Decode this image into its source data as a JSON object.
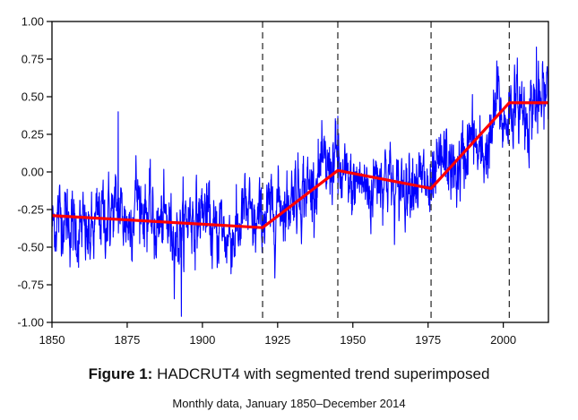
{
  "caption": {
    "figure_label": "Figure 1:",
    "title": "HADCRUT4 with segmented trend superimposed",
    "subtitle": "Monthly data, January 1850–December 2014"
  },
  "colors": {
    "series": "#0000ff",
    "trend": "#ff0000",
    "breakpoints": "#333333",
    "axis": "#000000"
  },
  "chart_data": {
    "type": "line",
    "title": "HADCRUT4 with segmented trend superimposed",
    "subtitle": "Monthly data, January 1850–December 2014",
    "xlabel": "",
    "ylabel": "",
    "xlim": [
      1850,
      2015
    ],
    "ylim": [
      -1.0,
      1.0
    ],
    "x_ticks": [
      1850,
      1875,
      1900,
      1925,
      1950,
      1975,
      2000
    ],
    "y_ticks": [
      -1.0,
      -0.75,
      -0.5,
      -0.25,
      0.0,
      0.25,
      0.5,
      0.75,
      1.0
    ],
    "x_tick_labels": [
      "1850",
      "1875",
      "1900",
      "1925",
      "1950",
      "1975",
      "2000"
    ],
    "y_tick_labels": [
      "-1.00",
      "-0.75",
      "-0.50",
      "-0.25",
      "0.00",
      "0.25",
      "0.50",
      "0.75",
      "1.00"
    ],
    "grid": false,
    "legend": "none",
    "series": [
      {
        "kind": "monthly anomaly",
        "style": "blue line",
        "x": [
          1850,
          1852,
          1854,
          1856,
          1858,
          1860,
          1862,
          1864,
          1866,
          1868,
          1870,
          1872,
          1874,
          1876,
          1878,
          1880,
          1882,
          1884,
          1886,
          1888,
          1890,
          1892,
          1894,
          1896,
          1898,
          1900,
          1902,
          1904,
          1906,
          1908,
          1910,
          1912,
          1914,
          1916,
          1918,
          1920,
          1922,
          1924,
          1926,
          1928,
          1930,
          1932,
          1934,
          1936,
          1938,
          1940,
          1942,
          1944,
          1946,
          1948,
          1950,
          1952,
          1954,
          1956,
          1958,
          1960,
          1962,
          1964,
          1966,
          1968,
          1970,
          1972,
          1974,
          1976,
          1978,
          1980,
          1982,
          1984,
          1986,
          1988,
          1990,
          1992,
          1994,
          1996,
          1998,
          2000,
          2002,
          2004,
          2006,
          2008,
          2010,
          2012,
          2014
        ],
        "y": [
          -0.37,
          -0.3,
          -0.28,
          -0.34,
          -0.4,
          -0.38,
          -0.45,
          -0.4,
          -0.27,
          -0.3,
          -0.27,
          -0.24,
          -0.3,
          -0.35,
          -0.12,
          -0.24,
          -0.26,
          -0.38,
          -0.36,
          -0.33,
          -0.38,
          -0.44,
          -0.35,
          -0.26,
          -0.33,
          -0.25,
          -0.3,
          -0.45,
          -0.33,
          -0.44,
          -0.41,
          -0.4,
          -0.24,
          -0.34,
          -0.38,
          -0.28,
          -0.29,
          -0.25,
          -0.18,
          -0.24,
          -0.12,
          -0.12,
          -0.1,
          -0.12,
          -0.02,
          0.0,
          0.01,
          0.1,
          -0.05,
          -0.08,
          -0.12,
          -0.04,
          -0.1,
          -0.15,
          0.01,
          -0.03,
          0.01,
          -0.2,
          -0.07,
          -0.07,
          0.01,
          -0.08,
          -0.07,
          -0.19,
          -0.02,
          0.07,
          0.06,
          -0.04,
          0.05,
          0.16,
          0.24,
          0.07,
          0.14,
          0.2,
          0.52,
          0.3,
          0.42,
          0.43,
          0.45,
          0.35,
          0.48,
          0.41,
          0.52
        ],
        "monthly_noise_sd": 0.12,
        "extremes": [
          {
            "x": 1872,
            "y": 0.4
          },
          {
            "x": 1893,
            "y": -0.96
          },
          {
            "x": 1945,
            "y": 0.37
          },
          {
            "x": 2011,
            "y": 0.83
          }
        ]
      },
      {
        "kind": "segmented trend",
        "style": "red line",
        "x": [
          1850,
          1920,
          1945,
          1976,
          2002,
          2015
        ],
        "y": [
          -0.29,
          -0.37,
          0.01,
          -0.11,
          0.46,
          0.46
        ]
      }
    ],
    "breakpoints": [
      1920,
      1945,
      1976,
      2002
    ]
  }
}
